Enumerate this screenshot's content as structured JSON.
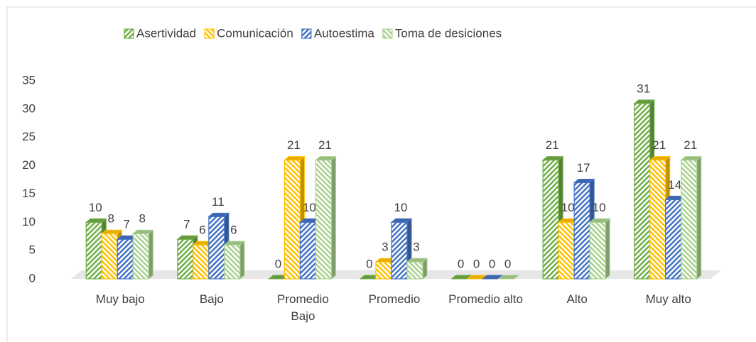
{
  "chart_data": {
    "type": "bar",
    "categories": [
      "Muy bajo",
      "Bajo",
      "Promedio Bajo",
      "Promedio",
      "Promedio alto",
      "Alto",
      "Muy alto"
    ],
    "series": [
      {
        "name": "Asertividad",
        "color": "#70ad47",
        "values": [
          10,
          7,
          0,
          0,
          0,
          21,
          31
        ]
      },
      {
        "name": "Comunicación",
        "color": "#ffc000",
        "values": [
          8,
          6,
          21,
          3,
          0,
          10,
          21
        ]
      },
      {
        "name": "Autoestima",
        "color": "#4472c4",
        "values": [
          7,
          11,
          10,
          10,
          0,
          17,
          14
        ]
      },
      {
        "name": "Toma de desiciones",
        "color": "#a9d18e",
        "values": [
          8,
          6,
          21,
          3,
          0,
          10,
          21
        ]
      }
    ],
    "ylim": [
      0,
      35
    ],
    "yticks": [
      0,
      5,
      10,
      15,
      20,
      25,
      30,
      35
    ],
    "grid": false,
    "legend": "top"
  }
}
